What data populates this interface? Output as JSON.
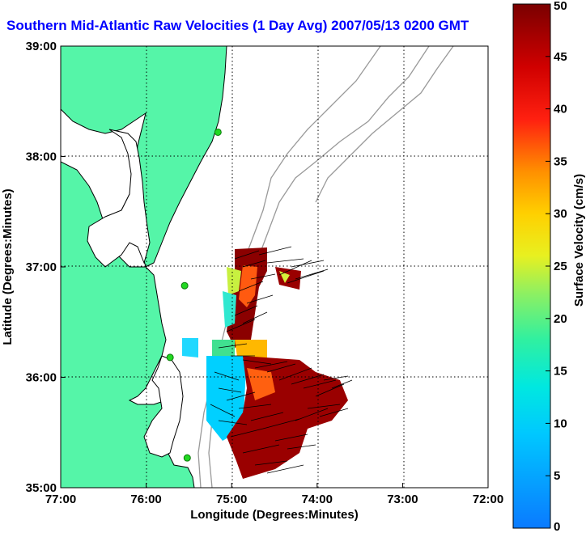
{
  "title": "Southern Mid-Atlantic Raw Velocities (1 Day Avg) 2007/05/13 0200 GMT",
  "x_axis": {
    "label": "Longitude (Degrees:Minutes)",
    "ticks": [
      "77:00",
      "76:00",
      "75:00",
      "74:00",
      "73:00",
      "72:00"
    ]
  },
  "y_axis": {
    "label": "Latitude (Degrees:Minutes)",
    "ticks": [
      "39:00",
      "38:00",
      "37:00",
      "36:00",
      "35:00"
    ]
  },
  "colorbar": {
    "label": "Surface Velocity (cm/s)",
    "ticks": [
      "0",
      "5",
      "10",
      "15",
      "20",
      "25",
      "30",
      "35",
      "40",
      "45",
      "50"
    ],
    "min": 0,
    "max": 50
  },
  "colors": {
    "land": "#55f5a8",
    "title": "#0000ff",
    "station": "#22d822"
  },
  "chart_data": {
    "type": "heatmap",
    "lon_range": [
      -77,
      -72
    ],
    "lat_range": [
      35,
      39
    ],
    "grid": true,
    "stations": [
      {
        "lon": -75.16,
        "lat": 38.22
      },
      {
        "lon": -75.55,
        "lat": 36.83
      },
      {
        "lon": -75.72,
        "lat": 36.18
      },
      {
        "lon": -75.52,
        "lat": 35.27
      }
    ]
  }
}
